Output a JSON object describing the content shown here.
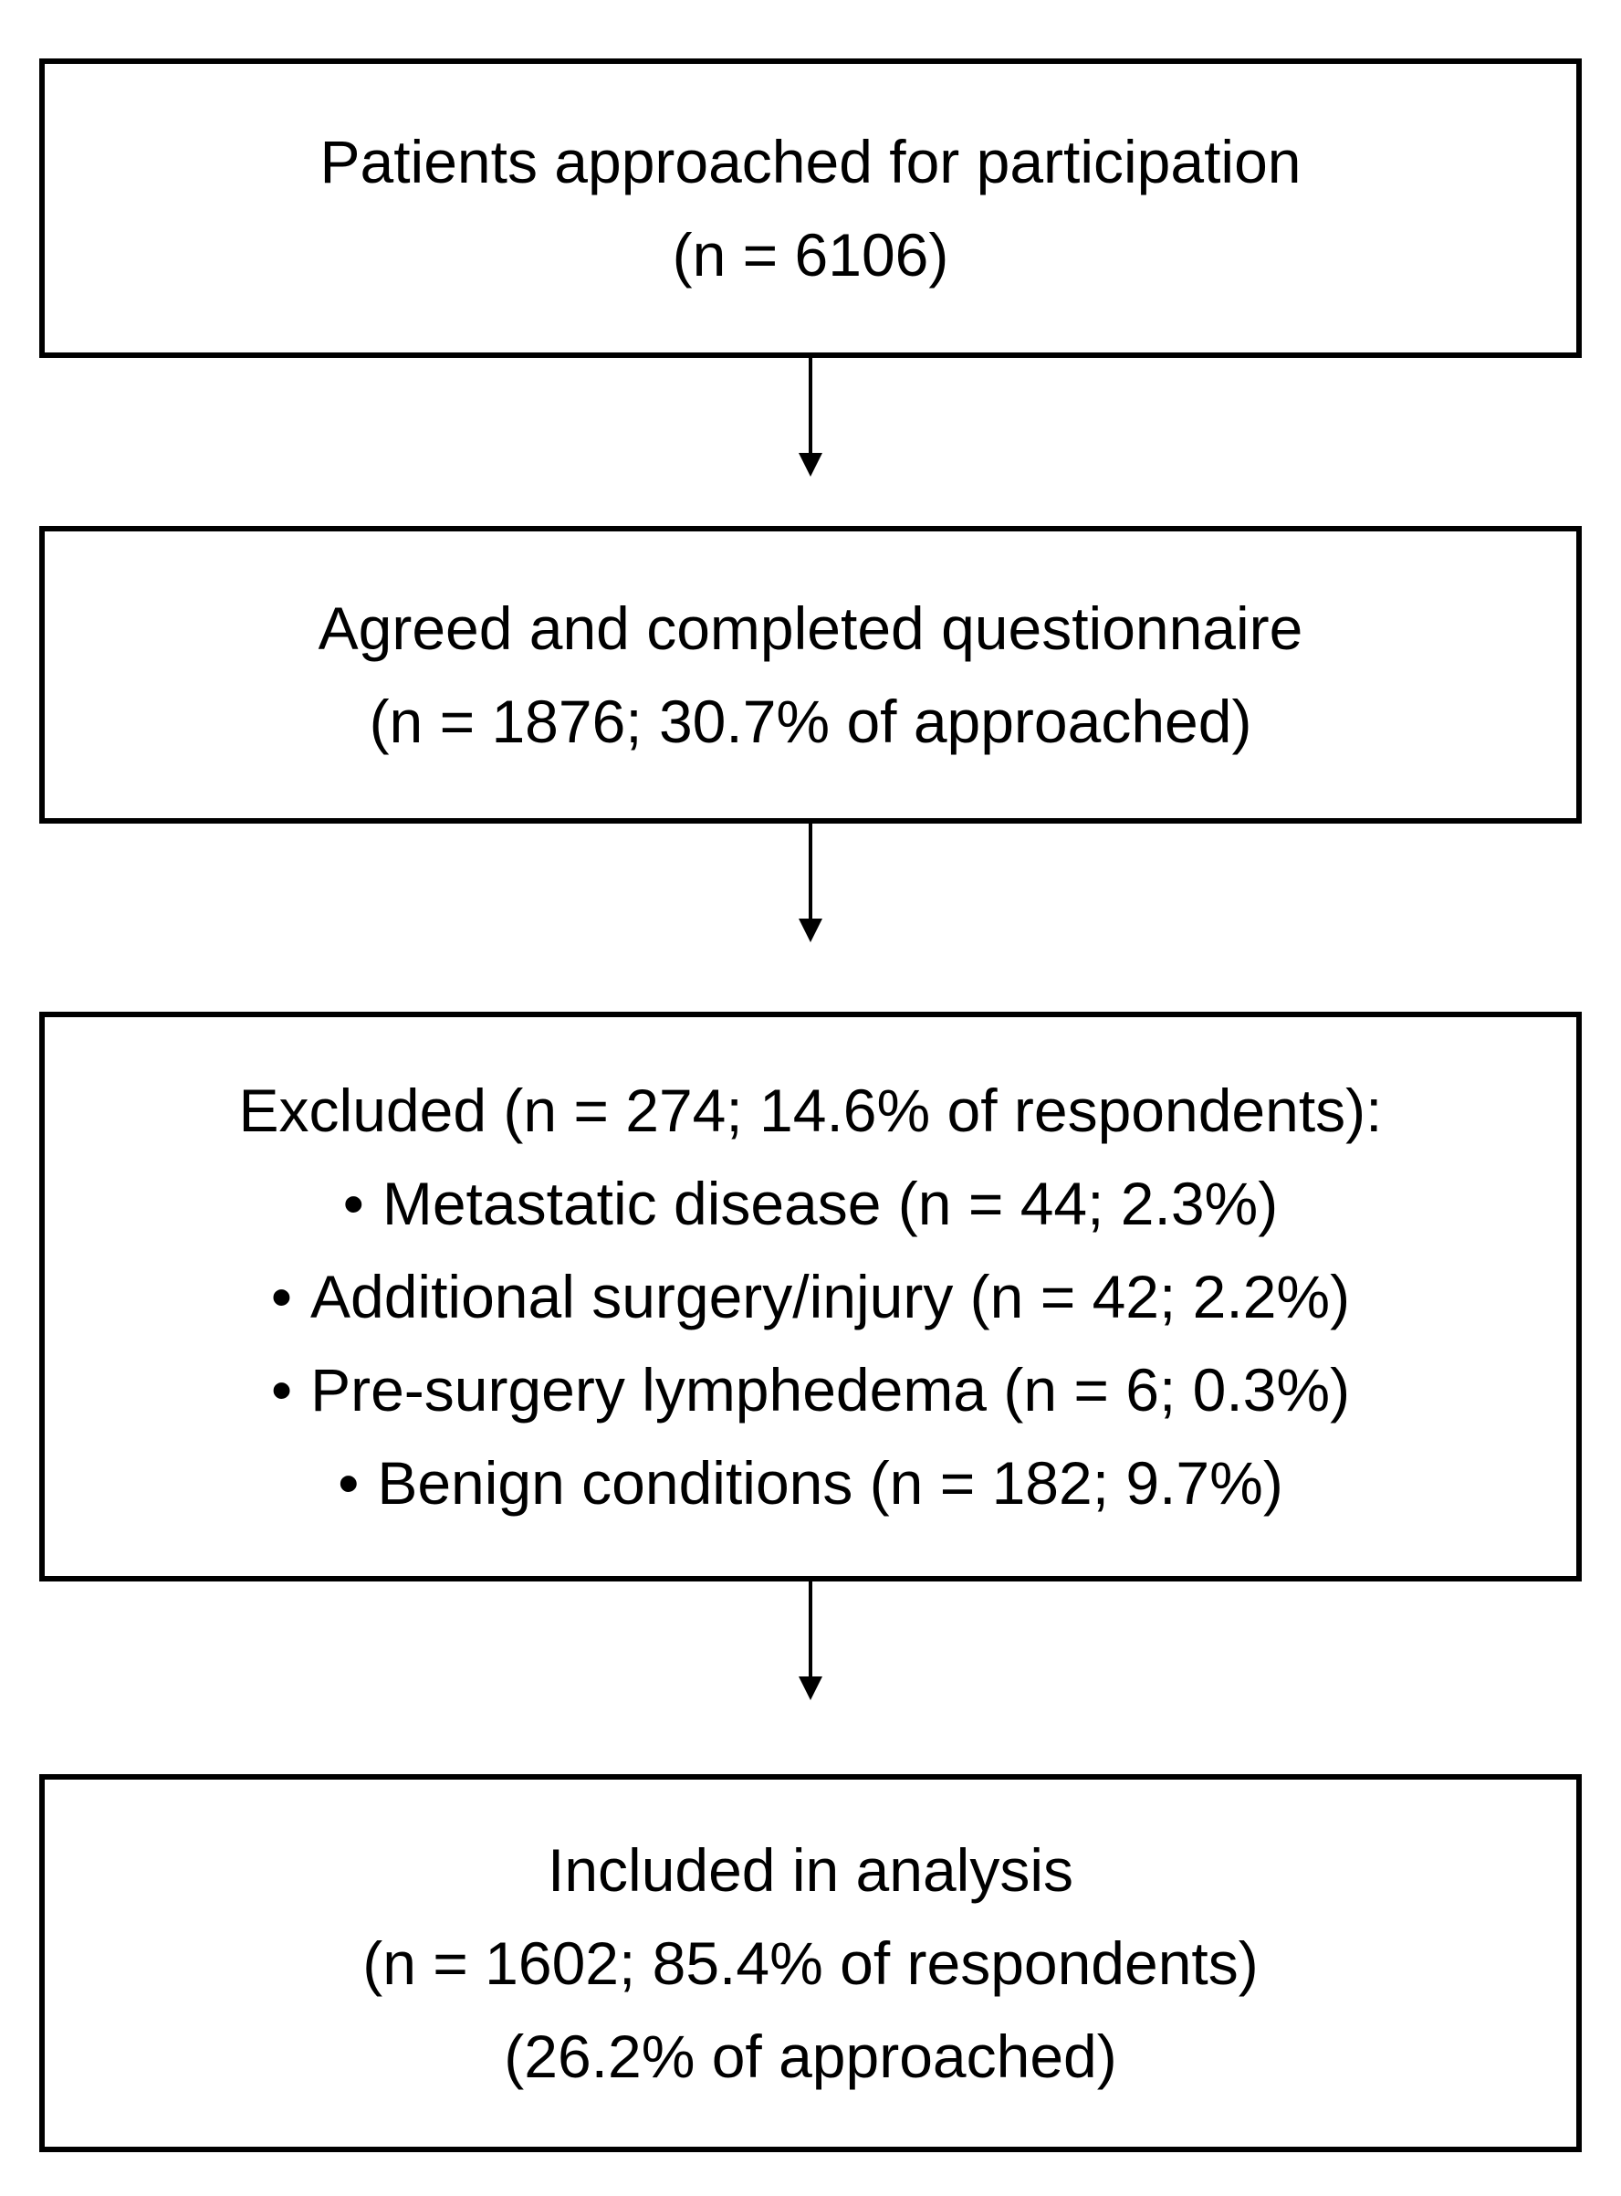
{
  "colors": {
    "background": "#ffffff",
    "border": "#000000",
    "text": "#000000",
    "arrow": "#000000"
  },
  "bullet_char": "•",
  "boxes": {
    "approached": {
      "line1": "Patients approached for participation",
      "line2": "(n = 6106)"
    },
    "completed": {
      "line1": "Agreed and completed questionnaire",
      "line2": "(n = 1876; 30.7% of approached)"
    },
    "excluded": {
      "heading": "Excluded (n = 274; 14.6% of respondents):",
      "bullets": [
        "Metastatic disease (n = 44; 2.3%)",
        "Additional surgery/injury (n = 42; 2.2%)",
        "Pre-surgery lymphedema (n = 6; 0.3%)",
        "Benign conditions (n = 182; 9.7%)"
      ]
    },
    "included": {
      "line1": "Included in analysis",
      "line2": "(n = 1602; 85.4% of respondents)",
      "line3": "(26.2% of approached)"
    }
  }
}
